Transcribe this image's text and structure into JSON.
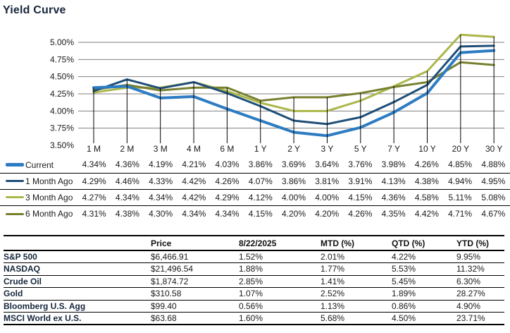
{
  "title": "Yield Curve",
  "chart_data": {
    "type": "line",
    "title": "Yield Curve",
    "categories": [
      "1 M",
      "2 M",
      "3 M",
      "4 M",
      "6 M",
      "1 Y",
      "2 Y",
      "3 Y",
      "5 Y",
      "7 Y",
      "10 Y",
      "20 Y",
      "30 Y"
    ],
    "series": [
      {
        "name": "Current",
        "color": "#2d7cc3",
        "line_width": 4,
        "values": [
          4.34,
          4.36,
          4.19,
          4.21,
          4.03,
          3.86,
          3.69,
          3.64,
          3.76,
          3.98,
          4.26,
          4.85,
          4.88
        ]
      },
      {
        "name": "1 Month Ago",
        "color": "#1f4e79",
        "line_width": 3,
        "values": [
          4.29,
          4.46,
          4.33,
          4.42,
          4.26,
          4.07,
          3.86,
          3.81,
          3.91,
          4.13,
          4.38,
          4.94,
          4.95
        ]
      },
      {
        "name": "3 Month Ago",
        "color": "#abb74a",
        "line_width": 3,
        "values": [
          4.27,
          4.34,
          4.34,
          4.42,
          4.29,
          4.12,
          4.0,
          4.0,
          4.15,
          4.36,
          4.58,
          5.11,
          5.08
        ]
      },
      {
        "name": "6 Month Ago",
        "color": "#788030",
        "line_width": 3,
        "values": [
          4.31,
          4.38,
          4.3,
          4.34,
          4.34,
          4.15,
          4.2,
          4.2,
          4.26,
          4.35,
          4.42,
          4.71,
          4.67
        ]
      }
    ],
    "y_ticks": [
      "5.00%",
      "4.75%",
      "4.50%",
      "4.25%",
      "4.00%",
      "3.75%",
      "3.50%"
    ],
    "ylim": [
      3.5,
      5.0
    ],
    "y_tick_step": 0.25,
    "value_suffix": "%",
    "grid": "horizontal gridlines at 3.75%-5.00%; vertical drop line at each maturity",
    "gridline_color": "#7f7f7f",
    "dropline_color": "#000000",
    "legend_position": "table below chart, one row per series with values"
  },
  "market_table": {
    "headers": [
      "Price",
      "8/22/2025",
      "MTD (%)",
      "QTD (%)",
      "YTD (%)"
    ],
    "rows": [
      {
        "label": "S&P 500",
        "values": [
          "$6,466.91",
          "1.52%",
          "2.01%",
          "4.22%",
          "9.95%"
        ]
      },
      {
        "label": "NASDAQ",
        "values": [
          "$21,496.54",
          "1.88%",
          "1.77%",
          "5.53%",
          "11.32%"
        ]
      },
      {
        "label": "Crude Oil",
        "values": [
          "$1,874.72",
          "2.85%",
          "1.41%",
          "5.45%",
          "6.30%"
        ]
      },
      {
        "label": "Gold",
        "values": [
          "$310.58",
          "1.07%",
          "2.52%",
          "1.89%",
          "28.27%"
        ]
      },
      {
        "label": "Bloomberg U.S. Agg",
        "values": [
          "$99.40",
          "0.56%",
          "1.13%",
          "0.86%",
          "4.90%"
        ]
      },
      {
        "label": "MSCI World ex U.S.",
        "values": [
          "$63.68",
          "1.60%",
          "5.68%",
          "4.50%",
          "23.71%"
        ]
      }
    ]
  }
}
